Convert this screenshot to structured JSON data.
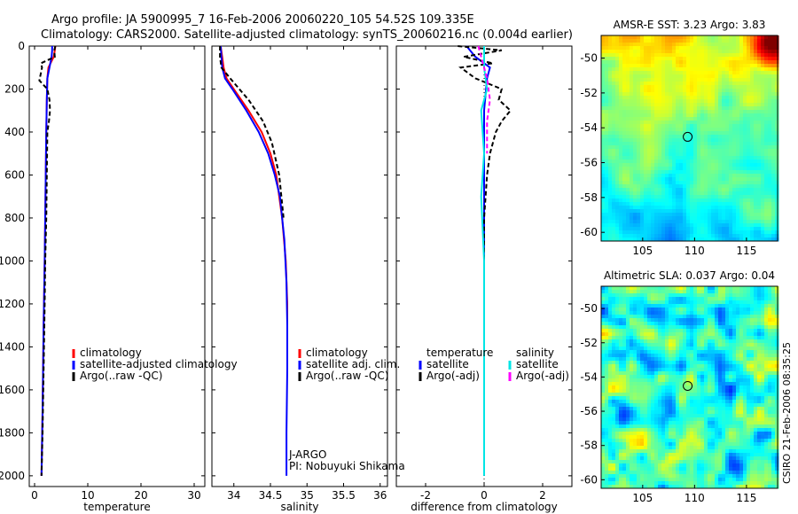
{
  "title": {
    "line1": "Argo profile: JA 5900995_7 16-Feb-2006 20060220_105 54.52S 109.335E",
    "line2": "Climatology: CARS2000. Satellite-adjusted climatology: synTS_20060216.nc (0.004d earlier)"
  },
  "colors": {
    "climatology": "#ff0000",
    "satellite": "#0000ff",
    "argo": "#000000",
    "salinity_satellite": "#00e5e5",
    "salinity_argo": "#ff00ff"
  },
  "chart_data": [
    {
      "id": "temperature",
      "type": "line",
      "xlabel": "temperature",
      "ylabel": "",
      "xlim": [
        -1,
        32
      ],
      "ylim": [
        2050,
        0
      ],
      "xticks": [
        0,
        10,
        20,
        30
      ],
      "yticks": [
        0,
        200,
        400,
        600,
        800,
        1000,
        1200,
        1400,
        1600,
        1800,
        2000
      ],
      "legend": [
        "climatology",
        "satellite-adjusted climatology",
        "Argo(..raw -QC)"
      ],
      "series": [
        {
          "name": "climatology",
          "x": [
            3.9,
            3.8,
            3.6,
            2.6,
            2.4,
            2.3,
            2.2,
            2.1,
            2.0,
            1.9,
            1.7,
            1.5,
            1.3
          ],
          "y": [
            0,
            20,
            50,
            100,
            150,
            250,
            400,
            600,
            800,
            1000,
            1300,
            1700,
            2000
          ]
        },
        {
          "name": "satellite",
          "x": [
            3.3,
            3.3,
            3.2,
            2.8,
            2.4,
            2.3,
            2.2,
            2.1,
            2.0,
            1.9,
            1.7,
            1.5,
            1.3
          ],
          "y": [
            0,
            20,
            50,
            100,
            150,
            250,
            400,
            600,
            800,
            1000,
            1300,
            1700,
            2000
          ]
        },
        {
          "name": "argo",
          "x": [
            3.9,
            3.7,
            3.8,
            1.2,
            1.4,
            0.9,
            2.4,
            2.8,
            2.9,
            2.7,
            2.4,
            2.3,
            2.2,
            2.0,
            1.9,
            1.7,
            1.5,
            1.3
          ],
          "y": [
            0,
            20,
            50,
            80,
            100,
            160,
            200,
            250,
            300,
            350,
            400,
            600,
            800,
            1000,
            1200,
            1500,
            1800,
            2000
          ]
        }
      ]
    },
    {
      "id": "salinity",
      "type": "line",
      "xlabel": "salinity",
      "ylabel": "",
      "xlim": [
        33.7,
        36.1
      ],
      "ylim": [
        2050,
        0
      ],
      "xticks": [
        34,
        34.5,
        35,
        35.5,
        36
      ],
      "xticklabels": [
        "34",
        "34.5",
        "35",
        "35.5",
        "36"
      ],
      "legend": [
        "climatology",
        "satellite adj. clim.",
        "Argo(..raw -QC)"
      ],
      "annotation": [
        "J-ARGO",
        "PI: Nobuyuki Shikama"
      ],
      "series": [
        {
          "name": "climatology",
          "x": [
            33.82,
            33.84,
            33.86,
            33.9,
            34.0,
            34.2,
            34.38,
            34.5,
            34.58,
            34.66,
            34.71,
            34.73,
            34.73
          ],
          "y": [
            0,
            50,
            100,
            150,
            200,
            300,
            400,
            500,
            600,
            800,
            1000,
            1200,
            1350
          ]
        },
        {
          "name": "satellite",
          "x": [
            33.82,
            33.83,
            33.84,
            33.88,
            33.98,
            34.17,
            34.34,
            34.47,
            34.56,
            34.63,
            34.69,
            34.72,
            34.73,
            34.73,
            34.72,
            34.72
          ],
          "y": [
            0,
            50,
            100,
            150,
            200,
            300,
            400,
            500,
            600,
            700,
            900,
            1100,
            1300,
            1500,
            1800,
            2000
          ]
        },
        {
          "name": "argo",
          "x": [
            33.81,
            33.81,
            33.83,
            33.95,
            34.2,
            34.4,
            34.52,
            34.62,
            34.68
          ],
          "y": [
            0,
            50,
            100,
            150,
            250,
            350,
            450,
            600,
            800
          ]
        }
      ]
    },
    {
      "id": "difference",
      "type": "line",
      "xlabel": "difference from climatology",
      "ylabel": "",
      "xlim": [
        -3,
        3
      ],
      "ylim": [
        2050,
        0
      ],
      "xticks": [
        -2,
        0,
        2
      ],
      "xticklabels": [
        "-2",
        "0",
        "2"
      ],
      "legend_temperature": {
        "title": "temperature",
        "items": [
          "satellite",
          "Argo(-adj)"
        ]
      },
      "legend_salinity": {
        "title": "salinity",
        "items": [
          "satellite",
          "Argo(-adj)"
        ]
      },
      "series": [
        {
          "name": "temperature satellite",
          "x": [
            -0.6,
            -0.3,
            0.2,
            0.1,
            0.0,
            0.0,
            0.0,
            0.0
          ],
          "y": [
            0,
            50,
            100,
            150,
            300,
            600,
            1200,
            2000
          ]
        },
        {
          "name": "temperature Argo(-adj)",
          "x": [
            -0.9,
            0.6,
            -0.7,
            0.3,
            -0.8,
            -0.3,
            0.6,
            0.5,
            0.9,
            0.6,
            0.4,
            0.2,
            0.1,
            0.0,
            0.0,
            0.0
          ],
          "y": [
            0,
            20,
            50,
            80,
            100,
            150,
            200,
            250,
            300,
            350,
            400,
            500,
            600,
            800,
            1000,
            2000
          ]
        },
        {
          "name": "salinity satellite",
          "x": [
            0.0,
            0.0,
            0.1,
            -0.1,
            0.0,
            -0.1,
            0.0,
            0.0
          ],
          "y": [
            0,
            100,
            200,
            300,
            500,
            700,
            1000,
            2000
          ]
        },
        {
          "name": "salinity Argo(-adj)",
          "x": [
            -0.2,
            -0.1,
            0.1,
            0.2,
            0.1,
            0.1
          ],
          "y": [
            0,
            50,
            150,
            250,
            350,
            500
          ]
        }
      ]
    },
    {
      "id": "sst_map",
      "type": "heatmap",
      "title": "AMSR-E SST: 3.23 Argo: 3.83",
      "xlim": [
        101,
        118
      ],
      "ylim": [
        -60.5,
        -48.7
      ],
      "xticks": [
        105,
        110,
        115
      ],
      "yticks": [
        -50,
        -52,
        -54,
        -56,
        -58,
        -60
      ],
      "marker": {
        "lon": 109.335,
        "lat": -54.52
      }
    },
    {
      "id": "sla_map",
      "type": "heatmap",
      "title": "Altimetric SLA: 0.037 Argo: 0.04",
      "xlim": [
        101,
        118
      ],
      "ylim": [
        -60.5,
        -48.7
      ],
      "xticks": [
        105,
        110,
        115
      ],
      "yticks": [
        -50,
        -52,
        -54,
        -56,
        -58,
        -60
      ],
      "marker": {
        "lon": 109.335,
        "lat": -54.52
      }
    }
  ],
  "side_label": "CSIRO 21-Feb-2006 08:35:25"
}
